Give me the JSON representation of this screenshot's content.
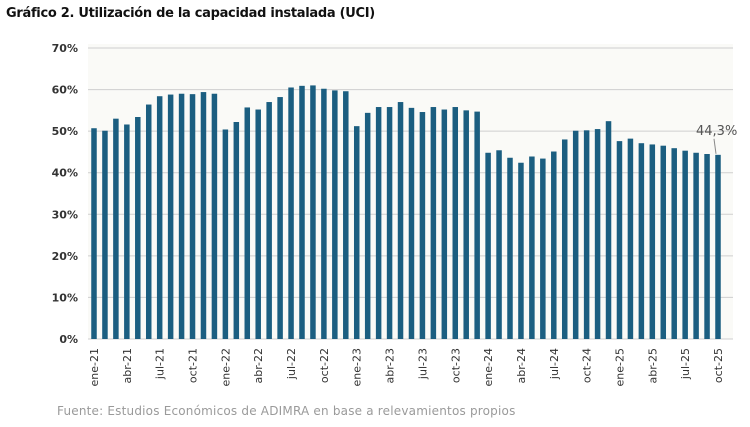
{
  "title": "Gráfico 2. Utilización de la capacidad instalada (UCI)",
  "source": "Fuente: Estudios Económicos de ADIMRA en base a relevamientos propios",
  "chart_data": {
    "type": "bar",
    "title": "Gráfico 2. Utilización de la capacidad instalada (UCI)",
    "xlabel": "",
    "ylabel": "",
    "ylim": [
      0,
      70
    ],
    "yticks": [
      "0%",
      "10%",
      "20%",
      "30%",
      "40%",
      "50%",
      "60%",
      "70%"
    ],
    "grid": true,
    "bar_color": "#1b5e80",
    "categories": [
      "ene-21",
      "feb-21",
      "mar-21",
      "abr-21",
      "may-21",
      "jun-21",
      "jul-21",
      "ago-21",
      "sep-21",
      "oct-21",
      "nov-21",
      "dic-21",
      "ene-22",
      "feb-22",
      "mar-22",
      "abr-22",
      "may-22",
      "jun-22",
      "jul-22",
      "ago-22",
      "sep-22",
      "oct-22",
      "nov-22",
      "dic-22",
      "ene-23",
      "feb-23",
      "mar-23",
      "abr-23",
      "may-23",
      "jun-23",
      "jul-23",
      "ago-23",
      "sep-23",
      "oct-23",
      "nov-23",
      "dic-23",
      "ene-24",
      "feb-24",
      "mar-24",
      "abr-24",
      "may-24",
      "jun-24",
      "jul-24",
      "ago-24",
      "sep-24",
      "oct-24",
      "nov-24",
      "dic-24",
      "ene-25",
      "feb-25",
      "mar-25",
      "abr-25",
      "may-25",
      "jun-25",
      "jul-25",
      "ago-25",
      "sep-25",
      "oct-25"
    ],
    "xtick_labels": [
      "ene-21",
      "abr-21",
      "jul-21",
      "oct-21",
      "ene-22",
      "abr-22",
      "jul-22",
      "oct-22",
      "ene-23",
      "abr-23",
      "jul-23",
      "oct-23",
      "ene-24",
      "abr-24",
      "jul-24",
      "oct-24",
      "ene-25",
      "abr-25",
      "jul-25",
      "oct-25"
    ],
    "values": [
      50.7,
      50.1,
      53.0,
      51.6,
      53.4,
      56.4,
      58.4,
      58.8,
      59.0,
      58.9,
      59.4,
      59.0,
      50.4,
      52.2,
      55.7,
      55.2,
      57.0,
      58.2,
      60.5,
      60.9,
      61.0,
      60.2,
      59.8,
      59.6,
      51.2,
      54.4,
      55.8,
      55.8,
      57.0,
      55.6,
      54.6,
      55.8,
      55.2,
      55.8,
      55.0,
      54.7,
      44.8,
      45.4,
      43.6,
      42.4,
      43.9,
      43.4,
      45.1,
      48.0,
      50.1,
      50.2,
      50.5,
      52.4,
      47.6,
      48.2,
      47.1,
      46.8,
      46.5,
      45.9,
      45.3,
      44.8,
      44.5,
      44.3
    ],
    "annotations": [
      {
        "category": "oct-25",
        "text": "44,3%"
      }
    ]
  }
}
